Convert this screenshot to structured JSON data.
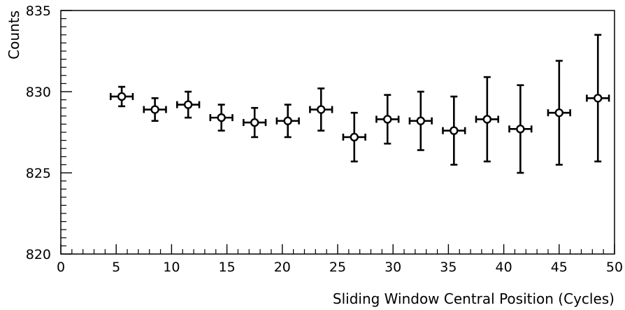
{
  "chart_data": {
    "type": "scatter",
    "title": "",
    "xlabel": "Sliding Window Central Position (Cycles)",
    "ylabel": "Counts",
    "xlim": [
      0,
      50
    ],
    "ylim": [
      820,
      835
    ],
    "x_ticks": [
      "0",
      "5",
      "10",
      "15",
      "20",
      "25",
      "30",
      "35",
      "40",
      "45",
      "50"
    ],
    "y_ticks": [
      "820",
      "825",
      "830",
      "835"
    ],
    "grid": false,
    "marker": "open-circle",
    "color": "#000000",
    "points": [
      {
        "x": 5.5,
        "y": 829.7,
        "xerr": 1.0,
        "yerr_low": 0.6,
        "yerr_high": 0.6
      },
      {
        "x": 8.5,
        "y": 828.9,
        "xerr": 1.0,
        "yerr_low": 0.7,
        "yerr_high": 0.7
      },
      {
        "x": 11.5,
        "y": 829.2,
        "xerr": 1.0,
        "yerr_low": 0.8,
        "yerr_high": 0.8
      },
      {
        "x": 14.5,
        "y": 828.4,
        "xerr": 1.0,
        "yerr_low": 0.8,
        "yerr_high": 0.8
      },
      {
        "x": 17.5,
        "y": 828.1,
        "xerr": 1.0,
        "yerr_low": 0.9,
        "yerr_high": 0.9
      },
      {
        "x": 20.5,
        "y": 828.2,
        "xerr": 1.0,
        "yerr_low": 1.0,
        "yerr_high": 1.0
      },
      {
        "x": 23.5,
        "y": 828.9,
        "xerr": 1.0,
        "yerr_low": 1.3,
        "yerr_high": 1.3
      },
      {
        "x": 26.5,
        "y": 827.2,
        "xerr": 1.0,
        "yerr_low": 1.5,
        "yerr_high": 1.5
      },
      {
        "x": 29.5,
        "y": 828.3,
        "xerr": 1.0,
        "yerr_low": 1.5,
        "yerr_high": 1.5
      },
      {
        "x": 32.5,
        "y": 828.2,
        "xerr": 1.0,
        "yerr_low": 1.8,
        "yerr_high": 1.8
      },
      {
        "x": 35.5,
        "y": 827.6,
        "xerr": 1.0,
        "yerr_low": 2.1,
        "yerr_high": 2.1
      },
      {
        "x": 38.5,
        "y": 828.3,
        "xerr": 1.0,
        "yerr_low": 2.6,
        "yerr_high": 2.6
      },
      {
        "x": 41.5,
        "y": 827.7,
        "xerr": 1.0,
        "yerr_low": 2.7,
        "yerr_high": 2.7
      },
      {
        "x": 45.0,
        "y": 828.7,
        "xerr": 1.0,
        "yerr_low": 3.2,
        "yerr_high": 3.2
      },
      {
        "x": 48.5,
        "y": 829.6,
        "xerr": 1.0,
        "yerr_low": 3.9,
        "yerr_high": 3.9
      }
    ]
  }
}
